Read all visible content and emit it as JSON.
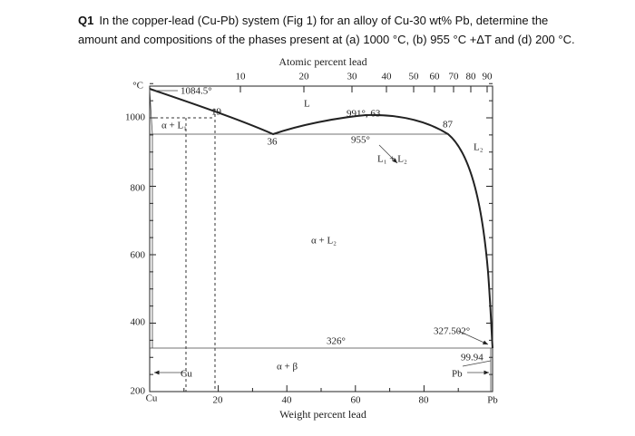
{
  "question": {
    "label": "Q1",
    "text": "In the copper-lead (Cu-Pb) system (Fig 1) for an alloy of Cu-30 wt% Pb, determine the amount and compositions of the phases present at (a) 1000 °C, (b) 955 °C +ΔT and (d) 200 °C."
  },
  "figure": {
    "top_axis_title": "Atomic percent lead",
    "top_ticks": [
      "10",
      "20",
      "30",
      "40",
      "50",
      "60",
      "70",
      "80",
      "90"
    ],
    "left_unit": "°C",
    "left_ticks": [
      "1000",
      "800",
      "600",
      "400",
      "200"
    ],
    "bottom_ticks": [
      "Cu",
      "20",
      "40",
      "60",
      "80",
      "Pb"
    ],
    "bottom_axis_title": "Weight percent lead",
    "annotations": [
      "1084.5°",
      "19",
      "α + L₁",
      "L",
      "991°, 63",
      "36",
      "955°",
      "87",
      "L₂",
      "L₁ + L₂",
      "α + L₂",
      "326°",
      "327.502°",
      "99.94",
      "α + β",
      "Cu",
      "Pb"
    ]
  }
}
